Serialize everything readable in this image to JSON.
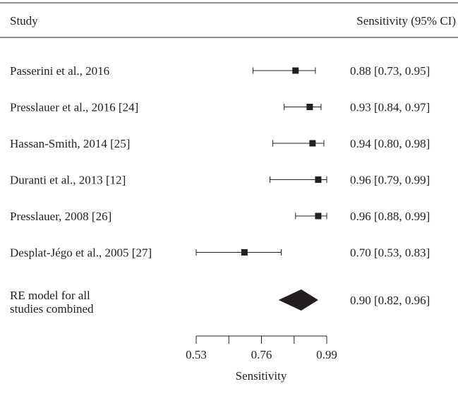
{
  "chart_data": {
    "type": "forest",
    "title": "",
    "column_headers": {
      "study": "Study",
      "estimate": "Sensitivity (95% CI)"
    },
    "studies": [
      {
        "name": "Passerini et al., 2016",
        "estimate": 0.88,
        "ci_low": 0.73,
        "ci_high": 0.95,
        "label": "0.88 [0.73, 0.95]"
      },
      {
        "name": "Presslauer et al., 2016 [24]",
        "estimate": 0.93,
        "ci_low": 0.84,
        "ci_high": 0.97,
        "label": "0.93 [0.84, 0.97]"
      },
      {
        "name": "Hassan-Smith, 2014 [25]",
        "estimate": 0.94,
        "ci_low": 0.8,
        "ci_high": 0.98,
        "label": "0.94 [0.80, 0.98]"
      },
      {
        "name": "Duranti et al., 2013 [12]",
        "estimate": 0.96,
        "ci_low": 0.79,
        "ci_high": 0.99,
        "label": "0.96 [0.79, 0.99]"
      },
      {
        "name": "Presslauer, 2008 [26]",
        "estimate": 0.96,
        "ci_low": 0.88,
        "ci_high": 0.99,
        "label": "0.96 [0.88, 0.99]"
      },
      {
        "name": "Desplat-Jégo et al., 2005 [27]",
        "estimate": 0.7,
        "ci_low": 0.53,
        "ci_high": 0.83,
        "label": "0.70 [0.53, 0.83]"
      }
    ],
    "summary": {
      "name_lines": [
        "RE model for all",
        "studies combined"
      ],
      "estimate": 0.9,
      "ci_low": 0.82,
      "ci_high": 0.96,
      "label": "0.90 [0.82, 0.96]"
    },
    "x_axis": {
      "label": "Sensitivity",
      "range": [
        0.53,
        0.99
      ],
      "major_ticks": [
        0.53,
        0.76,
        0.99
      ],
      "minor_ticks": [
        0.645,
        0.875
      ]
    }
  }
}
